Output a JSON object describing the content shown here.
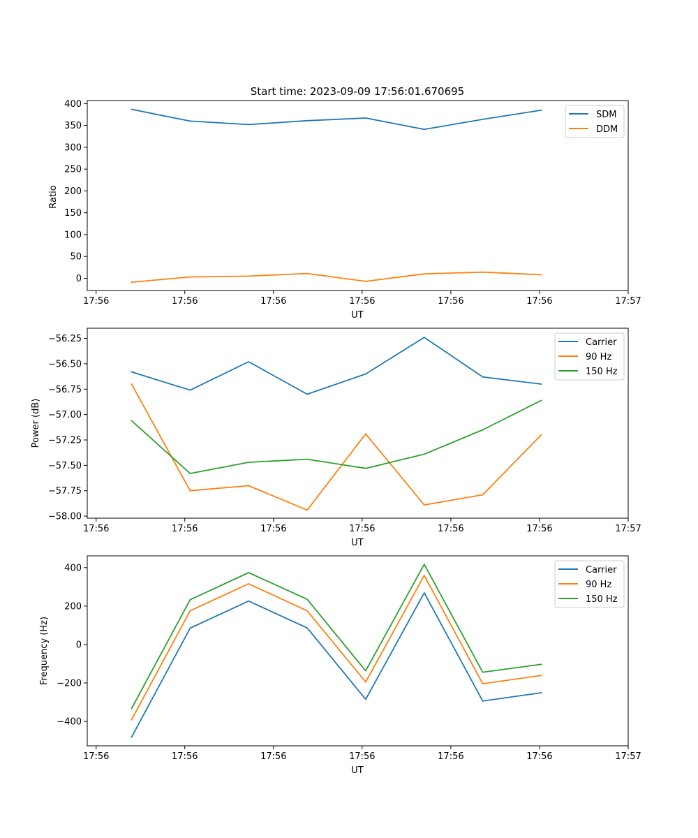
{
  "chart_data": [
    {
      "type": "line",
      "title": "Start time: 2023-09-09 17:56:01.670695",
      "xlabel": "UT",
      "ylabel": "Ratio",
      "x": [
        0.4,
        1.06,
        1.72,
        2.38,
        3.04,
        3.7,
        4.36,
        5.02
      ],
      "xlim": [
        -0.1,
        6.0
      ],
      "xticks": [
        0,
        1,
        2,
        3,
        4,
        5,
        6
      ],
      "xtick_labels": [
        "17:56",
        "17:56",
        "17:56",
        "17:56",
        "17:56",
        "17:56",
        "17:57"
      ],
      "ylim": [
        -28,
        407
      ],
      "yticks": [
        0,
        50,
        100,
        150,
        200,
        250,
        300,
        350,
        400
      ],
      "ytick_labels": [
        "0",
        "50",
        "100",
        "150",
        "200",
        "250",
        "300",
        "350",
        "400"
      ],
      "legend_position": "top-right",
      "series": [
        {
          "name": "SDM",
          "color": "#1f77b4",
          "values": [
            387,
            360,
            352,
            361,
            367,
            341,
            364,
            385
          ]
        },
        {
          "name": "DDM",
          "color": "#ff7f0e",
          "values": [
            -9,
            3,
            5,
            11,
            -7,
            10,
            14,
            8
          ]
        }
      ]
    },
    {
      "type": "line",
      "title": "",
      "xlabel": "UT",
      "ylabel": "Power (dB)",
      "x": [
        0.4,
        1.06,
        1.72,
        2.38,
        3.04,
        3.7,
        4.36,
        5.02
      ],
      "xlim": [
        -0.1,
        6.0
      ],
      "xticks": [
        0,
        1,
        2,
        3,
        4,
        5,
        6
      ],
      "xtick_labels": [
        "17:56",
        "17:56",
        "17:56",
        "17:56",
        "17:56",
        "17:56",
        "17:57"
      ],
      "ylim": [
        -58.02,
        -56.15
      ],
      "yticks": [
        -58.0,
        -57.75,
        -57.5,
        -57.25,
        -57.0,
        -56.75,
        -56.5,
        -56.25
      ],
      "ytick_labels": [
        "−58.00",
        "−57.75",
        "−57.50",
        "−57.25",
        "−57.00",
        "−56.75",
        "−56.50",
        "−56.25"
      ],
      "legend_position": "top-right",
      "series": [
        {
          "name": "Carrier",
          "color": "#1f77b4",
          "values": [
            -56.58,
            -56.76,
            -56.48,
            -56.8,
            -56.6,
            -56.24,
            -56.63,
            -56.7
          ]
        },
        {
          "name": "90 Hz",
          "color": "#ff7f0e",
          "values": [
            -56.7,
            -57.75,
            -57.7,
            -57.94,
            -57.19,
            -57.89,
            -57.79,
            -57.2
          ]
        },
        {
          "name": "150 Hz",
          "color": "#2ca02c",
          "values": [
            -57.06,
            -57.58,
            -57.47,
            -57.44,
            -57.53,
            -57.39,
            -57.15,
            -56.86
          ]
        }
      ]
    },
    {
      "type": "line",
      "title": "",
      "xlabel": "UT",
      "ylabel": "Frequency (Hz)",
      "x": [
        0.4,
        1.06,
        1.72,
        2.38,
        3.04,
        3.7,
        4.36,
        5.02
      ],
      "xlim": [
        -0.1,
        6.0
      ],
      "xticks": [
        0,
        1,
        2,
        3,
        4,
        5,
        6
      ],
      "xtick_labels": [
        "17:56",
        "17:56",
        "17:56",
        "17:56",
        "17:56",
        "17:56",
        "17:57"
      ],
      "ylim": [
        -527,
        461
      ],
      "yticks": [
        -400,
        -200,
        0,
        200,
        400
      ],
      "ytick_labels": [
        "−400",
        "−200",
        "0",
        "200",
        "400"
      ],
      "legend_position": "top-right",
      "series": [
        {
          "name": "Carrier",
          "color": "#1f77b4",
          "values": [
            -482,
            85,
            226,
            86,
            -285,
            269,
            -294,
            -251
          ]
        },
        {
          "name": "90 Hz",
          "color": "#ff7f0e",
          "values": [
            -391,
            175,
            316,
            175,
            -195,
            359,
            -204,
            -161
          ]
        },
        {
          "name": "150 Hz",
          "color": "#2ca02c",
          "values": [
            -333,
            233,
            374,
            235,
            -137,
            417,
            -144,
            -103
          ]
        }
      ]
    }
  ]
}
